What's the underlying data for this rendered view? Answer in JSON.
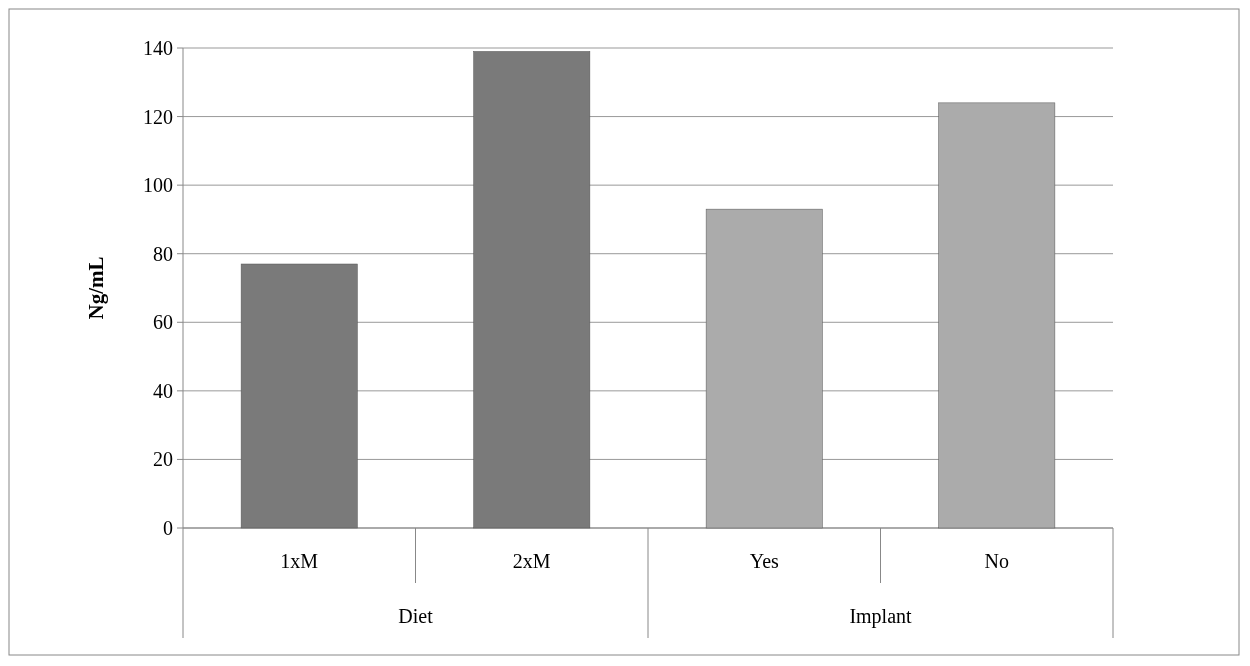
{
  "chart_data": {
    "type": "bar",
    "ylabel": "Ng/mL",
    "categories": [
      "1xM",
      "2xM",
      "Yes",
      "No"
    ],
    "values": [
      77,
      139,
      93,
      124
    ],
    "colors": [
      "#7a7a7a",
      "#7a7a7a",
      "#ababab",
      "#ababab"
    ],
    "ylim": [
      0,
      140
    ],
    "yticks": [
      0,
      20,
      40,
      60,
      80,
      100,
      120,
      140
    ],
    "grid": "y",
    "annotations": [
      "Diet",
      "Implant"
    ]
  }
}
